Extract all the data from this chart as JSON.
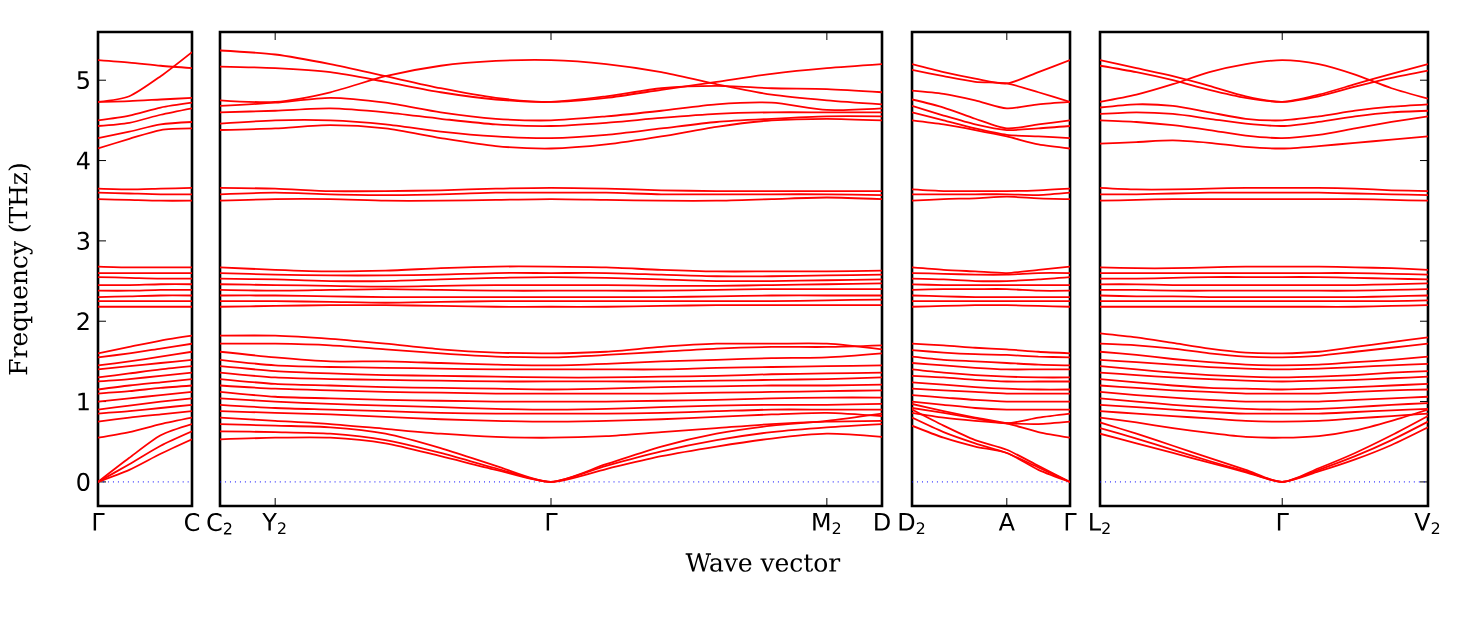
{
  "chart_data": [
    {
      "type": "line",
      "ylabel": "Frequency (THz)",
      "color": "#ff0000",
      "ylim": [
        -0.3,
        5.6
      ],
      "yticks": [
        0,
        1,
        2,
        3,
        4,
        5
      ],
      "categories": [
        "Γ",
        null,
        null,
        "C"
      ],
      "ref_lines": [
        {
          "axis": "y",
          "value": 0,
          "color": "#0000ff",
          "line_style": "dotted"
        }
      ],
      "series": [
        {
          "values": [
            5.25,
            5.22,
            5.18,
            5.15
          ]
        },
        {
          "values": [
            4.73,
            4.8,
            5.05,
            5.35
          ]
        },
        {
          "values": [
            4.73,
            4.74,
            4.76,
            4.78
          ]
        },
        {
          "values": [
            4.5,
            4.56,
            4.66,
            4.72
          ]
        },
        {
          "values": [
            4.43,
            4.47,
            4.57,
            4.65
          ]
        },
        {
          "values": [
            4.28,
            4.36,
            4.45,
            4.48
          ]
        },
        {
          "values": [
            4.15,
            4.27,
            4.38,
            4.4
          ]
        },
        {
          "values": [
            3.65,
            3.64,
            3.65,
            3.66
          ]
        },
        {
          "values": [
            3.6,
            3.59,
            3.58,
            3.58
          ]
        },
        {
          "values": [
            3.52,
            3.51,
            3.5,
            3.5
          ]
        },
        {
          "values": [
            2.68,
            2.67,
            2.67,
            2.67
          ]
        },
        {
          "values": [
            2.6,
            2.6,
            2.6,
            2.6
          ]
        },
        {
          "values": [
            2.55,
            2.54,
            2.53,
            2.53
          ]
        },
        {
          "values": [
            2.45,
            2.45,
            2.46,
            2.46
          ]
        },
        {
          "values": [
            2.38,
            2.38,
            2.39,
            2.39
          ]
        },
        {
          "values": [
            2.3,
            2.31,
            2.32,
            2.32
          ]
        },
        {
          "values": [
            2.25,
            2.25,
            2.25,
            2.25
          ]
        },
        {
          "values": [
            2.18,
            2.18,
            2.18,
            2.18
          ]
        },
        {
          "values": [
            1.6,
            1.68,
            1.76,
            1.82
          ]
        },
        {
          "values": [
            1.55,
            1.6,
            1.66,
            1.72
          ]
        },
        {
          "values": [
            1.45,
            1.5,
            1.56,
            1.62
          ]
        },
        {
          "values": [
            1.4,
            1.44,
            1.48,
            1.52
          ]
        },
        {
          "values": [
            1.3,
            1.35,
            1.4,
            1.44
          ]
        },
        {
          "values": [
            1.25,
            1.28,
            1.32,
            1.36
          ]
        },
        {
          "values": [
            1.15,
            1.2,
            1.24,
            1.28
          ]
        },
        {
          "values": [
            1.1,
            1.13,
            1.17,
            1.2
          ]
        },
        {
          "values": [
            1.0,
            1.04,
            1.08,
            1.12
          ]
        },
        {
          "values": [
            0.9,
            0.95,
            1.0,
            1.04
          ]
        },
        {
          "values": [
            0.85,
            0.88,
            0.92,
            0.96
          ]
        },
        {
          "values": [
            0.75,
            0.8,
            0.84,
            0.88
          ]
        },
        {
          "values": [
            0.55,
            0.62,
            0.72,
            0.8
          ]
        },
        {
          "values": [
            0,
            0.3,
            0.58,
            0.72
          ]
        },
        {
          "values": [
            0,
            0.22,
            0.45,
            0.63
          ]
        },
        {
          "values": [
            0,
            0.15,
            0.35,
            0.53
          ]
        }
      ]
    },
    {
      "type": "line",
      "xlabel": "Wave vector",
      "color": "#ff0000",
      "ylim": [
        -0.3,
        5.6
      ],
      "tick_labels": "x",
      "categories": [
        "C$_{2}$",
        "Y$_{2}$",
        null,
        null,
        null,
        null,
        "Γ",
        null,
        null,
        null,
        null,
        "M$_{2}$",
        "D"
      ],
      "ref_lines": [
        {
          "axis": "y",
          "value": 0,
          "color": "#0000ff",
          "line_style": "dotted"
        }
      ],
      "series": [
        {
          "values": [
            5.37,
            5.32,
            5.2,
            5.05,
            4.9,
            4.78,
            4.73,
            4.78,
            4.88,
            4.98,
            5.08,
            5.15,
            5.2
          ]
        },
        {
          "values": [
            5.17,
            5.15,
            5.1,
            4.98,
            4.85,
            4.76,
            4.73,
            4.8,
            4.9,
            4.93,
            4.9,
            4.89,
            4.85
          ]
        },
        {
          "values": [
            4.75,
            4.73,
            4.85,
            5.05,
            5.18,
            5.24,
            5.25,
            5.2,
            5.1,
            4.95,
            4.82,
            4.75,
            4.7
          ]
        },
        {
          "values": [
            4.68,
            4.72,
            4.78,
            4.72,
            4.6,
            4.52,
            4.5,
            4.55,
            4.62,
            4.7,
            4.72,
            4.63,
            4.65
          ]
        },
        {
          "values": [
            4.6,
            4.62,
            4.65,
            4.6,
            4.52,
            4.45,
            4.43,
            4.47,
            4.53,
            4.58,
            4.6,
            4.6,
            4.6
          ]
        },
        {
          "values": [
            4.46,
            4.5,
            4.5,
            4.45,
            4.36,
            4.3,
            4.28,
            4.32,
            4.4,
            4.48,
            4.52,
            4.55,
            4.55
          ]
        },
        {
          "values": [
            4.38,
            4.4,
            4.44,
            4.4,
            4.28,
            4.18,
            4.15,
            4.2,
            4.3,
            4.42,
            4.5,
            4.52,
            4.5
          ]
        },
        {
          "values": [
            3.66,
            3.65,
            3.62,
            3.62,
            3.63,
            3.65,
            3.66,
            3.65,
            3.63,
            3.62,
            3.62,
            3.62,
            3.62
          ]
        },
        {
          "values": [
            3.58,
            3.6,
            3.58,
            3.57,
            3.58,
            3.6,
            3.6,
            3.6,
            3.58,
            3.58,
            3.58,
            3.58,
            3.57
          ]
        },
        {
          "values": [
            3.5,
            3.52,
            3.52,
            3.5,
            3.5,
            3.51,
            3.52,
            3.51,
            3.5,
            3.5,
            3.52,
            3.54,
            3.52
          ]
        },
        {
          "values": [
            2.67,
            2.64,
            2.62,
            2.63,
            2.66,
            2.68,
            2.68,
            2.67,
            2.64,
            2.62,
            2.62,
            2.62,
            2.63
          ]
        },
        {
          "values": [
            2.6,
            2.58,
            2.57,
            2.57,
            2.58,
            2.6,
            2.6,
            2.6,
            2.58,
            2.56,
            2.56,
            2.57,
            2.58
          ]
        },
        {
          "values": [
            2.53,
            2.52,
            2.5,
            2.5,
            2.52,
            2.54,
            2.55,
            2.54,
            2.52,
            2.5,
            2.5,
            2.51,
            2.52
          ]
        },
        {
          "values": [
            2.46,
            2.45,
            2.44,
            2.43,
            2.44,
            2.45,
            2.45,
            2.45,
            2.44,
            2.44,
            2.45,
            2.46,
            2.47
          ]
        },
        {
          "values": [
            2.39,
            2.38,
            2.39,
            2.4,
            2.39,
            2.38,
            2.38,
            2.38,
            2.38,
            2.39,
            2.4,
            2.4,
            2.4
          ]
        },
        {
          "values": [
            2.32,
            2.32,
            2.31,
            2.3,
            2.3,
            2.3,
            2.3,
            2.3,
            2.3,
            2.31,
            2.32,
            2.32,
            2.32
          ]
        },
        {
          "values": [
            2.25,
            2.25,
            2.24,
            2.23,
            2.24,
            2.25,
            2.25,
            2.25,
            2.25,
            2.25,
            2.25,
            2.26,
            2.27
          ]
        },
        {
          "values": [
            2.18,
            2.19,
            2.2,
            2.2,
            2.19,
            2.18,
            2.18,
            2.18,
            2.19,
            2.2,
            2.2,
            2.2,
            2.2
          ]
        },
        {
          "values": [
            1.82,
            1.82,
            1.78,
            1.72,
            1.65,
            1.61,
            1.6,
            1.62,
            1.68,
            1.72,
            1.72,
            1.72,
            1.65
          ]
        },
        {
          "values": [
            1.72,
            1.72,
            1.7,
            1.65,
            1.6,
            1.56,
            1.55,
            1.58,
            1.62,
            1.66,
            1.68,
            1.68,
            1.7
          ]
        },
        {
          "values": [
            1.62,
            1.55,
            1.5,
            1.5,
            1.48,
            1.46,
            1.45,
            1.47,
            1.5,
            1.52,
            1.54,
            1.55,
            1.6
          ]
        },
        {
          "values": [
            1.52,
            1.45,
            1.43,
            1.42,
            1.41,
            1.4,
            1.4,
            1.4,
            1.4,
            1.42,
            1.43,
            1.44,
            1.45
          ]
        },
        {
          "values": [
            1.44,
            1.38,
            1.35,
            1.33,
            1.32,
            1.31,
            1.3,
            1.3,
            1.31,
            1.32,
            1.34,
            1.35,
            1.36
          ]
        },
        {
          "values": [
            1.36,
            1.3,
            1.28,
            1.27,
            1.26,
            1.25,
            1.25,
            1.25,
            1.25,
            1.26,
            1.27,
            1.28,
            1.3
          ]
        },
        {
          "values": [
            1.28,
            1.22,
            1.2,
            1.18,
            1.17,
            1.16,
            1.15,
            1.16,
            1.18,
            1.19,
            1.2,
            1.2,
            1.21
          ]
        },
        {
          "values": [
            1.2,
            1.16,
            1.14,
            1.12,
            1.11,
            1.1,
            1.1,
            1.1,
            1.1,
            1.11,
            1.12,
            1.13,
            1.14
          ]
        },
        {
          "values": [
            1.12,
            1.06,
            1.04,
            1.02,
            1.01,
            1.0,
            1.0,
            1.0,
            1.01,
            1.02,
            1.04,
            1.05,
            1.05
          ]
        },
        {
          "values": [
            1.04,
            1.0,
            0.97,
            0.95,
            0.93,
            0.91,
            0.9,
            0.91,
            0.93,
            0.95,
            0.96,
            0.96,
            0.97
          ]
        },
        {
          "values": [
            0.96,
            0.92,
            0.9,
            0.88,
            0.86,
            0.85,
            0.85,
            0.85,
            0.86,
            0.88,
            0.9,
            0.9,
            0.9
          ]
        },
        {
          "values": [
            0.88,
            0.86,
            0.84,
            0.81,
            0.78,
            0.76,
            0.75,
            0.76,
            0.78,
            0.81,
            0.84,
            0.86,
            0.82
          ]
        },
        {
          "values": [
            0.8,
            0.76,
            0.72,
            0.66,
            0.6,
            0.56,
            0.55,
            0.57,
            0.62,
            0.67,
            0.72,
            0.75,
            0.76
          ]
        },
        {
          "values": [
            0.72,
            0.7,
            0.68,
            0.6,
            0.42,
            0.2,
            0,
            0.22,
            0.44,
            0.6,
            0.7,
            0.76,
            0.85
          ]
        },
        {
          "values": [
            0.63,
            0.62,
            0.6,
            0.52,
            0.36,
            0.17,
            0,
            0.2,
            0.38,
            0.52,
            0.62,
            0.68,
            0.72
          ]
        },
        {
          "values": [
            0.53,
            0.55,
            0.55,
            0.48,
            0.32,
            0.15,
            0,
            0.16,
            0.32,
            0.44,
            0.54,
            0.6,
            0.56
          ]
        }
      ]
    },
    {
      "type": "line",
      "color": "#ff0000",
      "ylim": [
        -0.3,
        5.6
      ],
      "tick_labels": "x",
      "categories": [
        "D$_{2}$",
        null,
        null,
        "A",
        null,
        "Γ"
      ],
      "ref_lines": [
        {
          "axis": "y",
          "value": 0,
          "color": "#0000ff",
          "line_style": "dotted"
        }
      ],
      "series": [
        {
          "values": [
            5.2,
            5.1,
            5.02,
            4.96,
            5.1,
            5.25
          ]
        },
        {
          "values": [
            5.13,
            5.05,
            4.98,
            4.96,
            4.85,
            4.73
          ]
        },
        {
          "values": [
            4.87,
            4.83,
            4.75,
            4.65,
            4.7,
            4.73
          ]
        },
        {
          "values": [
            4.76,
            4.66,
            4.52,
            4.4,
            4.45,
            4.5
          ]
        },
        {
          "values": [
            4.68,
            4.56,
            4.45,
            4.38,
            4.4,
            4.43
          ]
        },
        {
          "values": [
            4.6,
            4.5,
            4.4,
            4.32,
            4.3,
            4.28
          ]
        },
        {
          "values": [
            4.5,
            4.45,
            4.38,
            4.3,
            4.2,
            4.15
          ]
        },
        {
          "values": [
            3.64,
            3.62,
            3.62,
            3.62,
            3.63,
            3.65
          ]
        },
        {
          "values": [
            3.58,
            3.58,
            3.58,
            3.58,
            3.57,
            3.6
          ]
        },
        {
          "values": [
            3.5,
            3.52,
            3.53,
            3.55,
            3.53,
            3.52
          ]
        },
        {
          "values": [
            2.67,
            2.64,
            2.62,
            2.6,
            2.64,
            2.68
          ]
        },
        {
          "values": [
            2.6,
            2.59,
            2.58,
            2.58,
            2.6,
            2.6
          ]
        },
        {
          "values": [
            2.53,
            2.52,
            2.5,
            2.5,
            2.52,
            2.55
          ]
        },
        {
          "values": [
            2.46,
            2.45,
            2.45,
            2.45,
            2.45,
            2.45
          ]
        },
        {
          "values": [
            2.39,
            2.4,
            2.4,
            2.4,
            2.38,
            2.38
          ]
        },
        {
          "values": [
            2.32,
            2.31,
            2.3,
            2.3,
            2.3,
            2.3
          ]
        },
        {
          "values": [
            2.25,
            2.25,
            2.25,
            2.25,
            2.25,
            2.25
          ]
        },
        {
          "values": [
            2.18,
            2.19,
            2.2,
            2.2,
            2.19,
            2.18
          ]
        },
        {
          "values": [
            1.72,
            1.7,
            1.67,
            1.65,
            1.62,
            1.6
          ]
        },
        {
          "values": [
            1.64,
            1.61,
            1.59,
            1.58,
            1.56,
            1.55
          ]
        },
        {
          "values": [
            1.56,
            1.52,
            1.5,
            1.48,
            1.46,
            1.45
          ]
        },
        {
          "values": [
            1.48,
            1.45,
            1.42,
            1.4,
            1.4,
            1.4
          ]
        },
        {
          "values": [
            1.4,
            1.36,
            1.33,
            1.31,
            1.3,
            1.3
          ]
        },
        {
          "values": [
            1.32,
            1.3,
            1.27,
            1.25,
            1.25,
            1.25
          ]
        },
        {
          "values": [
            1.24,
            1.21,
            1.18,
            1.16,
            1.15,
            1.15
          ]
        },
        {
          "values": [
            1.16,
            1.14,
            1.12,
            1.1,
            1.1,
            1.1
          ]
        },
        {
          "values": [
            1.08,
            1.05,
            1.02,
            1.0,
            1.0,
            1.0
          ]
        },
        {
          "values": [
            1.0,
            0.96,
            0.92,
            0.9,
            0.9,
            0.9
          ]
        },
        {
          "values": [
            0.92,
            0.86,
            0.79,
            0.73,
            0.8,
            0.85
          ]
        },
        {
          "values": [
            0.86,
            0.8,
            0.76,
            0.73,
            0.72,
            0.75
          ]
        },
        {
          "values": [
            0.97,
            0.88,
            0.8,
            0.73,
            0.62,
            0.55
          ]
        },
        {
          "values": [
            0.9,
            0.7,
            0.52,
            0.4,
            0.2,
            0
          ]
        },
        {
          "values": [
            0.8,
            0.62,
            0.48,
            0.36,
            0.18,
            0
          ]
        },
        {
          "values": [
            0.7,
            0.55,
            0.44,
            0.36,
            0.15,
            0
          ]
        }
      ]
    },
    {
      "type": "line",
      "color": "#ff0000",
      "ylim": [
        -0.3,
        5.6
      ],
      "yticks": [
        0,
        1,
        2,
        3,
        4,
        5
      ],
      "tick_labels": "x",
      "categories": [
        "L$_{2}$",
        null,
        null,
        null,
        null,
        "Γ",
        null,
        null,
        null,
        "V$_{2}$"
      ],
      "ref_lines": [
        {
          "axis": "y",
          "value": 0,
          "color": "#0000ff",
          "line_style": "dotted"
        }
      ],
      "series": [
        {
          "values": [
            5.25,
            5.15,
            5.05,
            4.93,
            4.8,
            4.73,
            4.82,
            4.95,
            5.08,
            5.2
          ]
        },
        {
          "values": [
            5.18,
            5.1,
            5.0,
            4.88,
            4.78,
            4.73,
            4.8,
            4.92,
            5.03,
            5.12
          ]
        },
        {
          "values": [
            4.73,
            4.82,
            4.95,
            5.1,
            5.2,
            5.25,
            5.2,
            5.07,
            4.9,
            4.77
          ]
        },
        {
          "values": [
            4.66,
            4.7,
            4.68,
            4.6,
            4.52,
            4.5,
            4.55,
            4.62,
            4.67,
            4.7
          ]
        },
        {
          "values": [
            4.58,
            4.6,
            4.58,
            4.52,
            4.46,
            4.43,
            4.48,
            4.55,
            4.6,
            4.62
          ]
        },
        {
          "values": [
            4.5,
            4.48,
            4.44,
            4.38,
            4.31,
            4.28,
            4.32,
            4.4,
            4.48,
            4.55
          ]
        },
        {
          "values": [
            4.21,
            4.23,
            4.25,
            4.22,
            4.17,
            4.15,
            4.18,
            4.22,
            4.26,
            4.3
          ]
        },
        {
          "values": [
            3.66,
            3.64,
            3.64,
            3.65,
            3.66,
            3.66,
            3.66,
            3.65,
            3.63,
            3.62
          ]
        },
        {
          "values": [
            3.58,
            3.58,
            3.59,
            3.6,
            3.6,
            3.6,
            3.6,
            3.59,
            3.58,
            3.57
          ]
        },
        {
          "values": [
            3.5,
            3.51,
            3.52,
            3.52,
            3.52,
            3.52,
            3.52,
            3.52,
            3.51,
            3.5
          ]
        },
        {
          "values": [
            2.67,
            2.66,
            2.66,
            2.67,
            2.68,
            2.68,
            2.68,
            2.67,
            2.66,
            2.64
          ]
        },
        {
          "values": [
            2.6,
            2.6,
            2.6,
            2.6,
            2.6,
            2.6,
            2.6,
            2.6,
            2.59,
            2.58
          ]
        },
        {
          "values": [
            2.53,
            2.53,
            2.54,
            2.55,
            2.55,
            2.55,
            2.55,
            2.54,
            2.53,
            2.52
          ]
        },
        {
          "values": [
            2.46,
            2.46,
            2.45,
            2.45,
            2.45,
            2.45,
            2.45,
            2.45,
            2.46,
            2.47
          ]
        },
        {
          "values": [
            2.39,
            2.39,
            2.38,
            2.38,
            2.38,
            2.38,
            2.38,
            2.38,
            2.39,
            2.4
          ]
        },
        {
          "values": [
            2.32,
            2.31,
            2.31,
            2.3,
            2.3,
            2.3,
            2.3,
            2.3,
            2.31,
            2.32
          ]
        },
        {
          "values": [
            2.25,
            2.25,
            2.25,
            2.25,
            2.25,
            2.25,
            2.25,
            2.25,
            2.25,
            2.26
          ]
        },
        {
          "values": [
            2.18,
            2.18,
            2.18,
            2.18,
            2.18,
            2.18,
            2.18,
            2.18,
            2.19,
            2.2
          ]
        },
        {
          "values": [
            1.85,
            1.8,
            1.73,
            1.66,
            1.61,
            1.6,
            1.62,
            1.68,
            1.74,
            1.8
          ]
        },
        {
          "values": [
            1.72,
            1.7,
            1.66,
            1.6,
            1.56,
            1.55,
            1.57,
            1.62,
            1.67,
            1.72
          ]
        },
        {
          "values": [
            1.62,
            1.58,
            1.53,
            1.49,
            1.46,
            1.45,
            1.46,
            1.49,
            1.52,
            1.56
          ]
        },
        {
          "values": [
            1.52,
            1.49,
            1.46,
            1.43,
            1.41,
            1.4,
            1.41,
            1.43,
            1.45,
            1.47
          ]
        },
        {
          "values": [
            1.44,
            1.4,
            1.36,
            1.33,
            1.31,
            1.3,
            1.31,
            1.33,
            1.36,
            1.38
          ]
        },
        {
          "values": [
            1.36,
            1.33,
            1.3,
            1.28,
            1.26,
            1.25,
            1.26,
            1.27,
            1.29,
            1.31
          ]
        },
        {
          "values": [
            1.28,
            1.24,
            1.2,
            1.17,
            1.16,
            1.15,
            1.16,
            1.18,
            1.2,
            1.22
          ]
        },
        {
          "values": [
            1.2,
            1.17,
            1.14,
            1.12,
            1.1,
            1.1,
            1.1,
            1.12,
            1.14,
            1.15
          ]
        },
        {
          "values": [
            1.12,
            1.08,
            1.05,
            1.02,
            1.0,
            1.0,
            1.0,
            1.02,
            1.04,
            1.06
          ]
        },
        {
          "values": [
            1.04,
            1.0,
            0.96,
            0.93,
            0.91,
            0.9,
            0.91,
            0.93,
            0.96,
            0.98
          ]
        },
        {
          "values": [
            0.96,
            0.93,
            0.9,
            0.87,
            0.85,
            0.85,
            0.85,
            0.87,
            0.89,
            0.91
          ]
        },
        {
          "values": [
            0.88,
            0.85,
            0.82,
            0.79,
            0.76,
            0.75,
            0.76,
            0.79,
            0.82,
            0.85
          ]
        },
        {
          "values": [
            0.8,
            0.74,
            0.67,
            0.61,
            0.56,
            0.55,
            0.57,
            0.64,
            0.76,
            0.9
          ]
        },
        {
          "values": [
            0.74,
            0.6,
            0.45,
            0.3,
            0.15,
            0,
            0.17,
            0.36,
            0.58,
            0.82
          ]
        },
        {
          "values": [
            0.67,
            0.54,
            0.4,
            0.26,
            0.13,
            0,
            0.15,
            0.32,
            0.52,
            0.75
          ]
        },
        {
          "values": [
            0.6,
            0.48,
            0.36,
            0.24,
            0.12,
            0,
            0.13,
            0.28,
            0.46,
            0.68
          ]
        }
      ]
    }
  ]
}
